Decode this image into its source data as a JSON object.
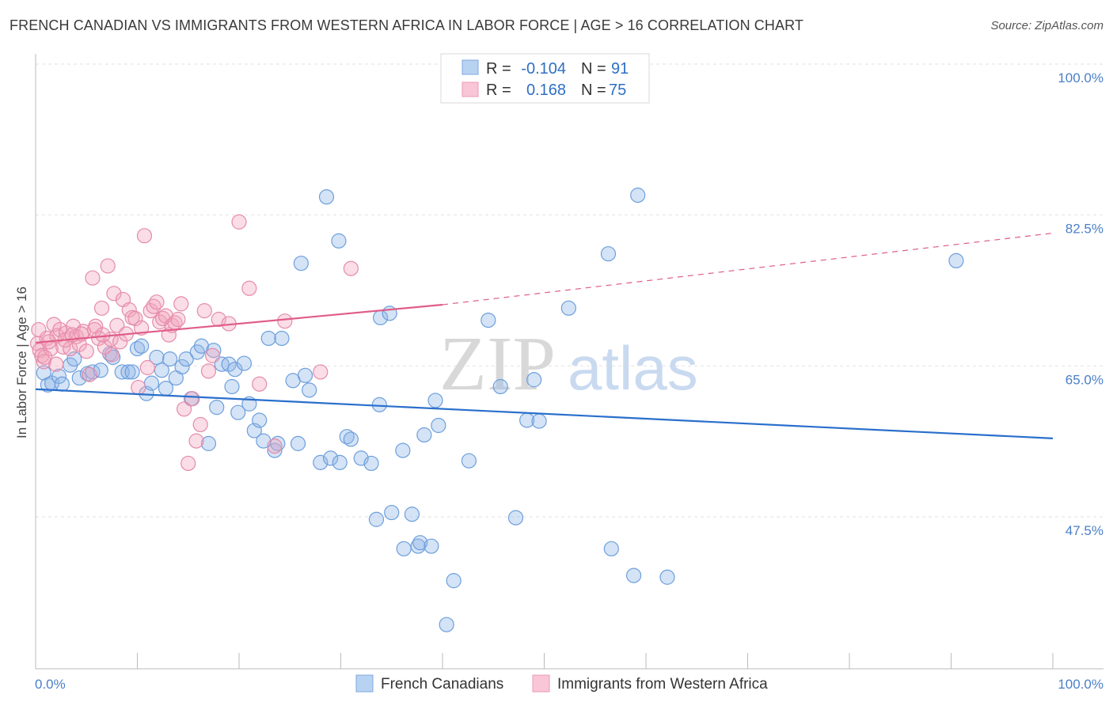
{
  "header": {
    "title": "FRENCH CANADIAN VS IMMIGRANTS FROM WESTERN AFRICA IN LABOR FORCE | AGE > 16 CORRELATION CHART",
    "source": "Source: ZipAtlas.com"
  },
  "watermark": {
    "zip": "ZIP",
    "atlas": "atlas"
  },
  "legend": {
    "r_label": "R =",
    "n_label": "N =",
    "series1": {
      "r": "-0.104",
      "n": "91"
    },
    "series2": {
      "r": "0.168",
      "n": "75"
    }
  },
  "chart_data": {
    "type": "scatter",
    "title": "FRENCH CANADIAN VS IMMIGRANTS FROM WESTERN AFRICA IN LABOR FORCE | AGE > 16 CORRELATION CHART",
    "xlabel": "",
    "ylabel": "In Labor Force | Age > 16",
    "xlim": [
      0,
      100
    ],
    "ylim": [
      29,
      103
    ],
    "x_tick_labels": [
      "0.0%",
      "100.0%"
    ],
    "y_ticks": [
      47.5,
      65.0,
      82.5,
      100.0
    ],
    "y_tick_labels": [
      "47.5%",
      "65.0%",
      "82.5%",
      "100.0%"
    ],
    "grid": true,
    "legend_position": "top-center",
    "series": [
      {
        "name": "French Canadians",
        "color": "#8db6e8",
        "line_color": "#2a6fcc",
        "trend": {
          "x0": 0,
          "y0": 62.3,
          "x1": 100,
          "y1": 56.6
        },
        "points": [
          [
            0.8,
            64.2
          ],
          [
            1.2,
            62.8
          ],
          [
            1.6,
            63.0
          ],
          [
            2.3,
            63.8
          ],
          [
            2.6,
            62.9
          ],
          [
            3.4,
            65.1
          ],
          [
            3.8,
            65.8
          ],
          [
            4.3,
            63.6
          ],
          [
            5.1,
            64.1
          ],
          [
            5.6,
            64.3
          ],
          [
            6.4,
            64.5
          ],
          [
            7.3,
            66.4
          ],
          [
            7.6,
            66.0
          ],
          [
            8.5,
            64.3
          ],
          [
            9.1,
            64.3
          ],
          [
            9.5,
            64.3
          ],
          [
            10.0,
            67.0
          ],
          [
            10.4,
            67.3
          ],
          [
            10.9,
            61.8
          ],
          [
            11.4,
            63.0
          ],
          [
            11.9,
            66.0
          ],
          [
            12.4,
            64.5
          ],
          [
            12.8,
            62.4
          ],
          [
            13.2,
            65.8
          ],
          [
            13.8,
            63.6
          ],
          [
            14.4,
            64.9
          ],
          [
            14.8,
            65.8
          ],
          [
            15.3,
            61.2
          ],
          [
            15.9,
            66.6
          ],
          [
            16.3,
            67.3
          ],
          [
            17.0,
            56.0
          ],
          [
            17.5,
            66.8
          ],
          [
            17.8,
            60.2
          ],
          [
            18.3,
            65.2
          ],
          [
            19.0,
            65.2
          ],
          [
            19.3,
            62.6
          ],
          [
            19.6,
            64.6
          ],
          [
            19.9,
            59.6
          ],
          [
            20.5,
            65.3
          ],
          [
            21.0,
            60.6
          ],
          [
            21.5,
            57.5
          ],
          [
            22.0,
            58.7
          ],
          [
            22.4,
            56.3
          ],
          [
            22.9,
            68.2
          ],
          [
            23.5,
            55.2
          ],
          [
            23.8,
            56.0
          ],
          [
            24.2,
            68.2
          ],
          [
            25.3,
            63.3
          ],
          [
            25.8,
            56.0
          ],
          [
            26.1,
            76.9
          ],
          [
            26.5,
            63.9
          ],
          [
            26.9,
            62.2
          ],
          [
            28.0,
            53.8
          ],
          [
            28.6,
            84.6
          ],
          [
            29.0,
            54.3
          ],
          [
            29.8,
            79.5
          ],
          [
            29.9,
            53.8
          ],
          [
            30.6,
            56.8
          ],
          [
            31.0,
            56.5
          ],
          [
            32.0,
            54.3
          ],
          [
            33.0,
            53.7
          ],
          [
            33.5,
            47.2
          ],
          [
            33.8,
            60.5
          ],
          [
            33.9,
            70.6
          ],
          [
            34.8,
            71.1
          ],
          [
            35.0,
            48.0
          ],
          [
            36.1,
            55.2
          ],
          [
            36.2,
            43.8
          ],
          [
            37.0,
            47.8
          ],
          [
            37.6,
            44.1
          ],
          [
            37.8,
            44.5
          ],
          [
            38.2,
            57.0
          ],
          [
            38.9,
            44.1
          ],
          [
            39.3,
            61.0
          ],
          [
            39.6,
            58.1
          ],
          [
            40.4,
            35.0
          ],
          [
            41.1,
            40.1
          ],
          [
            42.6,
            54.0
          ],
          [
            44.5,
            70.3
          ],
          [
            45.7,
            62.6
          ],
          [
            47.2,
            47.4
          ],
          [
            48.3,
            58.7
          ],
          [
            49.0,
            63.4
          ],
          [
            49.5,
            58.6
          ],
          [
            52.4,
            71.7
          ],
          [
            56.3,
            78.0
          ],
          [
            56.6,
            43.8
          ],
          [
            58.8,
            40.7
          ],
          [
            59.2,
            84.8
          ],
          [
            62.1,
            40.5
          ],
          [
            90.5,
            77.2
          ]
        ]
      },
      {
        "name": "Immigrants from Western Africa",
        "color": "#f2a6be",
        "line_color": "#e05d88",
        "trend": {
          "x0": 0,
          "y0": 67.7,
          "x1": 40,
          "y1": 72.1
        },
        "trend_dashed": {
          "x0": 40,
          "y0": 72.1,
          "x1": 100,
          "y1": 80.4
        },
        "points": [
          [
            0.2,
            67.6
          ],
          [
            0.4,
            66.8
          ],
          [
            0.6,
            66.2
          ],
          [
            0.8,
            65.5
          ],
          [
            1.1,
            68.2
          ],
          [
            1.5,
            67.0
          ],
          [
            1.8,
            69.8
          ],
          [
            2.1,
            68.5
          ],
          [
            2.4,
            69.2
          ],
          [
            2.7,
            67.2
          ],
          [
            3.0,
            68.8
          ],
          [
            3.4,
            67.0
          ],
          [
            3.7,
            69.6
          ],
          [
            4.0,
            68.4
          ],
          [
            4.3,
            67.5
          ],
          [
            4.7,
            69.0
          ],
          [
            5.0,
            66.7
          ],
          [
            5.3,
            64.0
          ],
          [
            5.6,
            75.2
          ],
          [
            5.9,
            69.6
          ],
          [
            6.2,
            68.2
          ],
          [
            6.5,
            71.7
          ],
          [
            6.8,
            67.2
          ],
          [
            7.1,
            76.6
          ],
          [
            7.4,
            68.1
          ],
          [
            7.7,
            73.4
          ],
          [
            8.0,
            69.7
          ],
          [
            8.3,
            67.8
          ],
          [
            8.6,
            72.7
          ],
          [
            8.9,
            68.7
          ],
          [
            9.2,
            71.5
          ],
          [
            9.5,
            70.6
          ],
          [
            9.8,
            70.5
          ],
          [
            10.1,
            62.5
          ],
          [
            10.4,
            69.4
          ],
          [
            10.7,
            80.1
          ],
          [
            11.0,
            64.8
          ],
          [
            11.3,
            71.4
          ],
          [
            11.6,
            71.9
          ],
          [
            11.9,
            72.4
          ],
          [
            12.2,
            70.1
          ],
          [
            12.5,
            70.5
          ],
          [
            12.8,
            70.8
          ],
          [
            13.1,
            68.6
          ],
          [
            13.4,
            69.7
          ],
          [
            13.7,
            70.0
          ],
          [
            14.0,
            70.4
          ],
          [
            14.3,
            72.2
          ],
          [
            14.6,
            60.0
          ],
          [
            15.0,
            53.7
          ],
          [
            15.4,
            61.2
          ],
          [
            15.8,
            56.3
          ],
          [
            16.2,
            58.2
          ],
          [
            16.6,
            71.4
          ],
          [
            17.0,
            64.4
          ],
          [
            17.4,
            66.2
          ],
          [
            18.0,
            70.4
          ],
          [
            19.0,
            69.9
          ],
          [
            20.0,
            81.7
          ],
          [
            21.0,
            74.0
          ],
          [
            22.0,
            62.9
          ],
          [
            23.5,
            55.7
          ],
          [
            24.5,
            70.2
          ],
          [
            28.0,
            64.3
          ],
          [
            31.0,
            76.3
          ],
          [
            0.3,
            69.2
          ],
          [
            0.9,
            66.0
          ],
          [
            1.3,
            67.8
          ],
          [
            2.0,
            65.2
          ],
          [
            2.9,
            68.0
          ],
          [
            3.6,
            68.6
          ],
          [
            4.5,
            68.7
          ],
          [
            5.8,
            69.2
          ],
          [
            6.6,
            68.6
          ],
          [
            7.5,
            66.3
          ]
        ]
      }
    ]
  },
  "bottom_legend": {
    "series1_label": "French Canadians",
    "series2_label": "Immigrants from Western Africa"
  }
}
